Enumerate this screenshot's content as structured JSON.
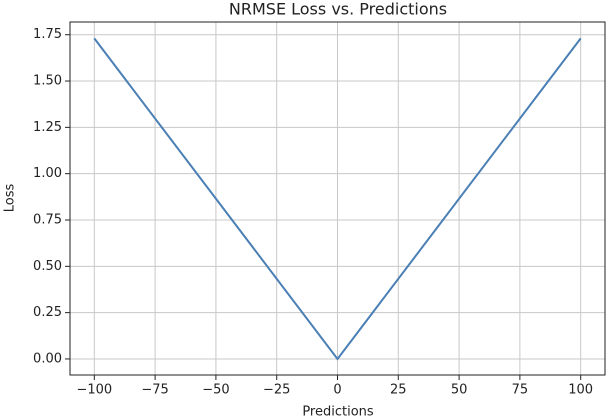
{
  "chart_data": {
    "type": "line",
    "title": "NRMSE Loss vs. Predictions",
    "x_label": "Predictions",
    "y_label": "Loss",
    "x": [
      -100,
      0,
      100
    ],
    "series": [
      {
        "name": "NRMSE Loss",
        "color": "#4a7fb5",
        "values": [
          1.73,
          0,
          1.73
        ]
      }
    ],
    "xlim": [
      -110,
      110
    ],
    "ylim": [
      -0.0866,
      1.8186
    ],
    "xticks": [
      {
        "value": -100,
        "label": "−100"
      },
      {
        "value": -75,
        "label": "−75"
      },
      {
        "value": -50,
        "label": "−50"
      },
      {
        "value": -25,
        "label": "−25"
      },
      0,
      25,
      50,
      75,
      100
    ],
    "yticks": [
      {
        "value": 0,
        "label": "0.00"
      },
      {
        "value": 0.25,
        "label": "0.25"
      },
      {
        "value": 0.5,
        "label": "0.50"
      },
      {
        "value": 0.75,
        "label": "0.75"
      },
      {
        "value": 1,
        "label": "1.00"
      },
      {
        "value": 1.25,
        "label": "1.25"
      },
      {
        "value": 1.5,
        "label": "1.50"
      },
      {
        "value": 1.75,
        "label": "1.75"
      }
    ],
    "grid": true
  }
}
